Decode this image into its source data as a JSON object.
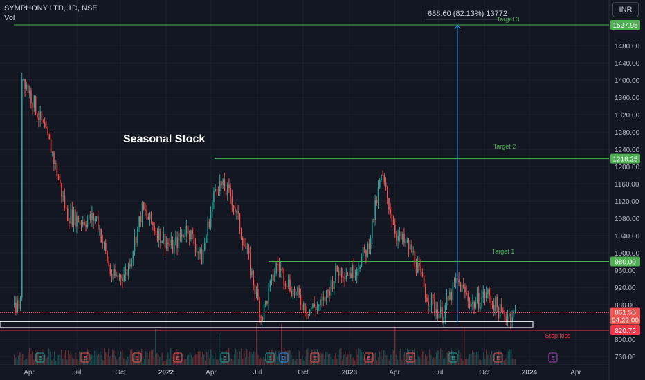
{
  "header": {
    "symbol": "SYMPHONY LTD, 1D, NSE",
    "volume_label": "Vol"
  },
  "currency_button": "INR",
  "measure_label": "688.60 (82.13%) 13772",
  "annotation": "Seasonal Stock",
  "colors": {
    "bg": "#131722",
    "up": "#26a69a",
    "down": "#ef5350",
    "target": "#4caf50",
    "stop": "#f23645",
    "text": "#b2b5be",
    "measure": "#2196f3"
  },
  "chart_data": {
    "type": "candlestick",
    "y_ticks": [
      "1480.00",
      "1440.00",
      "1400.00",
      "1360.00",
      "1320.00",
      "1280.00",
      "1240.00",
      "1200.00",
      "1160.00",
      "1120.00",
      "1080.00",
      "1040.00",
      "1000.00",
      "960.00",
      "920.00",
      "880.00",
      "800.00",
      "760.00"
    ],
    "x_ticks": [
      "Apr",
      "Jul",
      "Oct",
      "2022",
      "Apr",
      "Jul",
      "Oct",
      "2023",
      "Apr",
      "Jul",
      "Oct",
      "2024",
      "Apr"
    ],
    "levels": [
      {
        "name": "Target 3",
        "value": 1527.95,
        "label": "1527.95"
      },
      {
        "name": "Target 2",
        "value": 1218.25,
        "label": "1218.25"
      },
      {
        "name": "Target 1",
        "value": 980.0,
        "label": "980.00"
      },
      {
        "name": "Stop loss",
        "value": 820.75,
        "label": "820.75"
      }
    ],
    "last_price": {
      "value": 861.55,
      "label": "861.55",
      "countdown": "04:22:00"
    },
    "measure": {
      "from": 839.35,
      "to": 1527.95,
      "change": 688.6,
      "percent": 82.13,
      "bars": 13772
    },
    "entry_zone": [
      827,
      841
    ],
    "price_path": [
      [
        "2021-03",
        880
      ],
      [
        "2021-03",
        1525
      ],
      [
        "2021-03",
        1420
      ],
      [
        "2021-04",
        1330
      ],
      [
        "2021-05",
        1240
      ],
      [
        "2021-06",
        1090
      ],
      [
        "2021-07",
        1075
      ],
      [
        "2021-08",
        1080
      ],
      [
        "2021-09",
        940
      ],
      [
        "2021-10",
        955
      ],
      [
        "2021-11",
        1100
      ],
      [
        "2021-12",
        1050
      ],
      [
        "2022-01",
        1010
      ],
      [
        "2022-02",
        1060
      ],
      [
        "2022-03",
        985
      ],
      [
        "2022-04",
        1165
      ],
      [
        "2022-05",
        1130
      ],
      [
        "2022-06",
        1000
      ],
      [
        "2022-07",
        850
      ],
      [
        "2022-08",
        975
      ],
      [
        "2022-09",
        915
      ],
      [
        "2022-10",
        870
      ],
      [
        "2022-11",
        880
      ],
      [
        "2022-12",
        960
      ],
      [
        "2023-01",
        955
      ],
      [
        "2023-02",
        1010
      ],
      [
        "2023-03",
        1180
      ],
      [
        "2023-04",
        1040
      ],
      [
        "2023-05",
        1005
      ],
      [
        "2023-06",
        900
      ],
      [
        "2023-07",
        855
      ],
      [
        "2023-08",
        935
      ],
      [
        "2023-09",
        880
      ],
      [
        "2023-10",
        905
      ],
      [
        "2023-11",
        855
      ],
      [
        "2023-12",
        862
      ]
    ],
    "events": [
      "E",
      "E",
      "E",
      "E",
      "E",
      "E",
      "D",
      "E",
      "E",
      "E",
      "E",
      "E",
      "E",
      "E"
    ]
  }
}
